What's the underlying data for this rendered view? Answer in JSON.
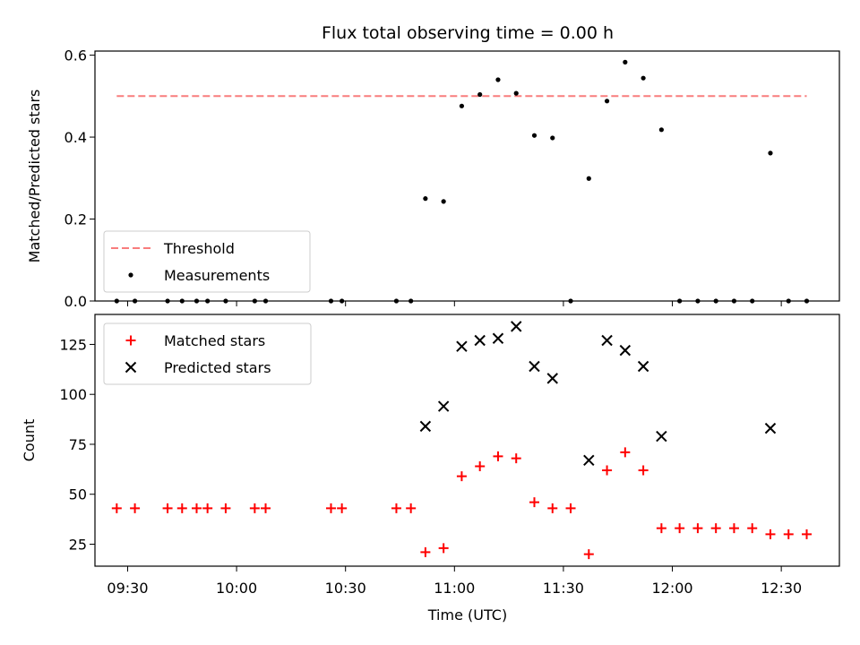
{
  "chart_data": [
    {
      "type": "scatter",
      "title": "Flux total observing time = 0.00 h",
      "xlabel": "",
      "ylabel": "Matched/Predicted stars",
      "ylim": [
        0,
        0.61
      ],
      "yticks": [
        0,
        0.2,
        0.4,
        0.6
      ],
      "ytick_labels": [
        "0.0",
        "0.2",
        "0.4",
        "0.6"
      ],
      "xlim": [
        "09:21",
        "12:46"
      ],
      "xticks": [
        "09:30",
        "10:00",
        "10:30",
        "11:00",
        "11:30",
        "12:00",
        "12:30"
      ],
      "legend_position": "lower left",
      "threshold": {
        "name": "Threshold",
        "value": 0.5,
        "x_start": "09:27",
        "x_end": "12:37",
        "color": "#f87d7d",
        "style": "dashed"
      },
      "series": [
        {
          "name": "Measurements",
          "color": "#000000",
          "marker": "dot",
          "points": [
            [
              "09:27",
              0
            ],
            [
              "09:32",
              0
            ],
            [
              "09:41",
              0
            ],
            [
              "09:45",
              0
            ],
            [
              "09:49",
              0
            ],
            [
              "09:52",
              0
            ],
            [
              "09:57",
              0
            ],
            [
              "10:05",
              0
            ],
            [
              "10:08",
              0
            ],
            [
              "10:26",
              0
            ],
            [
              "10:29",
              0
            ],
            [
              "10:44",
              0
            ],
            [
              "10:48",
              0
            ],
            [
              "10:52",
              0.25
            ],
            [
              "10:57",
              0.243
            ],
            [
              "11:02",
              0.476
            ],
            [
              "11:07",
              0.504
            ],
            [
              "11:12",
              0.54
            ],
            [
              "11:17",
              0.507
            ],
            [
              "11:22",
              0.404
            ],
            [
              "11:27",
              0.398
            ],
            [
              "11:32",
              0
            ],
            [
              "11:37",
              0.299
            ],
            [
              "11:42",
              0.488
            ],
            [
              "11:47",
              0.583
            ],
            [
              "11:52",
              0.544
            ],
            [
              "11:57",
              0.418
            ],
            [
              "12:02",
              0
            ],
            [
              "12:07",
              0
            ],
            [
              "12:12",
              0
            ],
            [
              "12:17",
              0
            ],
            [
              "12:22",
              0
            ],
            [
              "12:27",
              0.361
            ],
            [
              "12:32",
              0
            ],
            [
              "12:37",
              0
            ]
          ]
        }
      ]
    },
    {
      "type": "scatter",
      "title": "",
      "xlabel": "Time (UTC)",
      "ylabel": "Count",
      "ylim": [
        14,
        140
      ],
      "yticks": [
        25,
        50,
        75,
        100,
        125
      ],
      "xlim": [
        "09:21",
        "12:46"
      ],
      "xticks": [
        "09:30",
        "10:00",
        "10:30",
        "11:00",
        "11:30",
        "12:00",
        "12:30"
      ],
      "legend_position": "upper left",
      "series": [
        {
          "name": "Matched stars",
          "color": "#ff0000",
          "marker": "plus",
          "points": [
            [
              "09:27",
              43
            ],
            [
              "09:32",
              43
            ],
            [
              "09:41",
              43
            ],
            [
              "09:45",
              43
            ],
            [
              "09:49",
              43
            ],
            [
              "09:52",
              43
            ],
            [
              "09:57",
              43
            ],
            [
              "10:05",
              43
            ],
            [
              "10:08",
              43
            ],
            [
              "10:26",
              43
            ],
            [
              "10:29",
              43
            ],
            [
              "10:44",
              43
            ],
            [
              "10:48",
              43
            ],
            [
              "10:52",
              21
            ],
            [
              "10:57",
              23
            ],
            [
              "11:02",
              59
            ],
            [
              "11:07",
              64
            ],
            [
              "11:12",
              69
            ],
            [
              "11:17",
              68
            ],
            [
              "11:22",
              46
            ],
            [
              "11:27",
              43
            ],
            [
              "11:32",
              43
            ],
            [
              "11:37",
              20
            ],
            [
              "11:42",
              62
            ],
            [
              "11:47",
              71
            ],
            [
              "11:52",
              62
            ],
            [
              "11:57",
              33
            ],
            [
              "12:02",
              33
            ],
            [
              "12:07",
              33
            ],
            [
              "12:12",
              33
            ],
            [
              "12:17",
              33
            ],
            [
              "12:22",
              33
            ],
            [
              "12:27",
              30
            ],
            [
              "12:32",
              30
            ],
            [
              "12:37",
              30
            ]
          ]
        },
        {
          "name": "Predicted stars",
          "color": "#000000",
          "marker": "x",
          "points": [
            [
              "10:52",
              84
            ],
            [
              "10:57",
              94
            ],
            [
              "11:02",
              124
            ],
            [
              "11:07",
              127
            ],
            [
              "11:12",
              128
            ],
            [
              "11:17",
              134
            ],
            [
              "11:22",
              114
            ],
            [
              "11:27",
              108
            ],
            [
              "11:37",
              67
            ],
            [
              "11:42",
              127
            ],
            [
              "11:47",
              122
            ],
            [
              "11:52",
              114
            ],
            [
              "11:57",
              79
            ],
            [
              "12:27",
              83
            ]
          ]
        }
      ]
    }
  ]
}
